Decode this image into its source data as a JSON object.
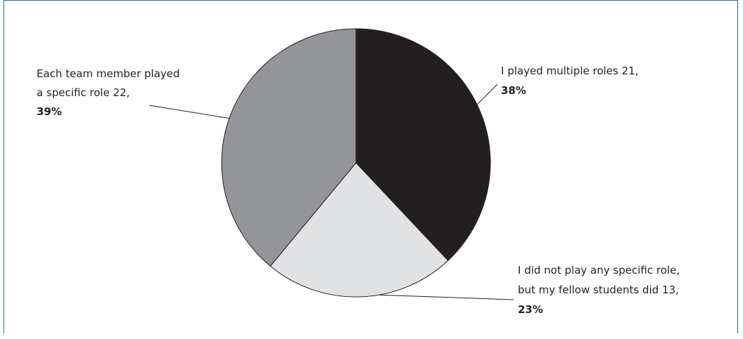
{
  "chart_data": {
    "type": "pie",
    "slices": [
      {
        "label_lines": [
          "I played multiple roles 21,"
        ],
        "count": 21,
        "value": 38,
        "percent_label": "38%",
        "color": "#231f20"
      },
      {
        "label_lines": [
          "I did not play any specific role,",
          "but my fellow students did 13,"
        ],
        "count": 13,
        "value": 23,
        "percent_label": "23%",
        "color": "#e1e2e4"
      },
      {
        "label_lines": [
          "Each team member played",
          "a specific role 22,"
        ],
        "count": 22,
        "value": 39,
        "percent_label": "39%",
        "color": "#939598"
      }
    ],
    "start_angle": "12 o'clock",
    "direction": "clockwise",
    "legend": "none",
    "border_color": "#2a6ea6"
  }
}
